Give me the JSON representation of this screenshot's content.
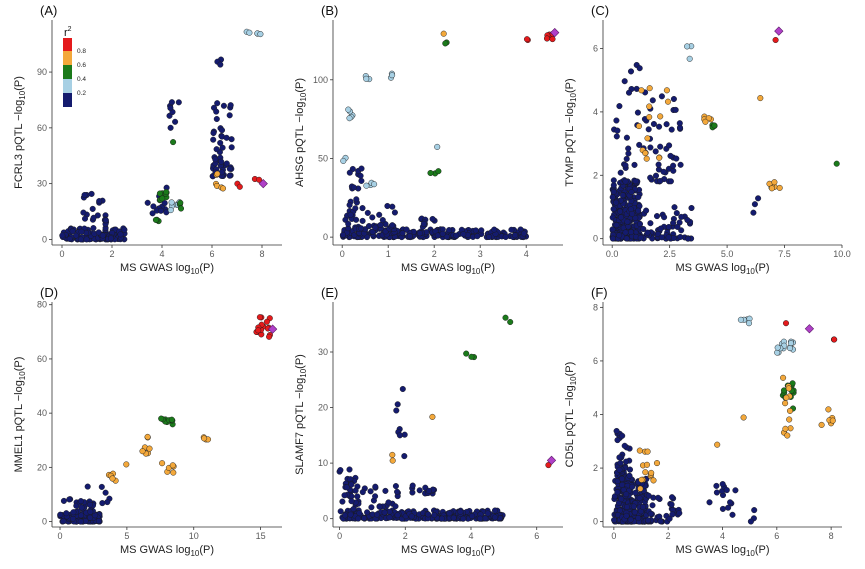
{
  "figure": {
    "legend": {
      "title": "r",
      "title_sup": "2",
      "labels": [
        "0.8",
        "0.6",
        "0.4",
        "0.2"
      ],
      "colors": [
        "#e41a1c",
        "#f3a83b",
        "#1b7a1b",
        "#a7d0e4",
        "#141b6e"
      ]
    },
    "lead_color": "#b040c8",
    "edge_color": "#1a1a1a"
  },
  "chart_data": [
    {
      "type": "scatter",
      "panel": "(A)",
      "ylabel_prefix": "FCRL3 pQTL ",
      "ylabel_suffix": "−log",
      "ylabel_sub": "10",
      "ylabel_end": "(P)",
      "xlabel_prefix": "MS GWAS ",
      "xlabel_suffix": "log",
      "xlabel_sub": "10",
      "xlabel_end": "(P)",
      "xlim": [
        -0.4,
        8.8
      ],
      "ylim": [
        -3,
        118
      ],
      "xticks": [
        0,
        2,
        4,
        6,
        8
      ],
      "xticklabels": [
        "0",
        "2",
        "4",
        "6",
        "8"
      ],
      "yticks": [
        0,
        30,
        60,
        90
      ],
      "yticklabels": [
        "0",
        "30",
        "60",
        "90"
      ],
      "clusters": [
        {
          "x": [
            0,
            2.5
          ],
          "y": [
            0,
            6
          ],
          "n": 110,
          "c": 0
        },
        {
          "x": [
            0.8,
            1.8
          ],
          "y": [
            6,
            26
          ],
          "n": 22,
          "c": 0
        },
        {
          "x": [
            3.4,
            4.2
          ],
          "y": [
            14,
            28
          ],
          "n": 12,
          "c": 0
        },
        {
          "x": [
            4.3,
            4.7
          ],
          "y": [
            60,
            74
          ],
          "n": 8,
          "c": 0
        },
        {
          "x": [
            6.0,
            6.8
          ],
          "y": [
            34,
            75
          ],
          "n": 50,
          "c": 0
        },
        {
          "x": [
            6.2,
            6.4
          ],
          "y": [
            86,
            98
          ],
          "n": 3,
          "c": 0
        },
        {
          "x": [
            3.9,
            4.4
          ],
          "y": [
            20,
            26
          ],
          "n": 10,
          "c": 2
        },
        {
          "x": [
            3.7,
            3.9
          ],
          "y": [
            9,
            12
          ],
          "n": 3,
          "c": 2
        },
        {
          "x": [
            4.7,
            4.9
          ],
          "y": [
            16,
            20
          ],
          "n": 3,
          "c": 2
        },
        {
          "x": [
            4.4,
            4.5
          ],
          "y": [
            52,
            54
          ],
          "n": 1,
          "c": 2
        },
        {
          "x": [
            4.2,
            4.7
          ],
          "y": [
            15,
            20
          ],
          "n": 6,
          "c": 1
        },
        {
          "x": [
            6.1,
            6.5
          ],
          "y": [
            26,
            40
          ],
          "n": 6,
          "c": 3
        },
        {
          "x": [
            7.0,
            7.2
          ],
          "y": [
            28,
            30
          ],
          "n": 2,
          "c": 4
        },
        {
          "x": [
            7.7,
            7.9
          ],
          "y": [
            30,
            33
          ],
          "n": 2,
          "c": 4
        },
        {
          "x": [
            7.3,
            8.1
          ],
          "y": [
            110,
            112
          ],
          "n": 5,
          "c": 1
        }
      ],
      "lead": {
        "x": 8.05,
        "y": 30
      }
    },
    {
      "type": "scatter",
      "panel": "(B)",
      "ylabel_prefix": "AHSG pQTL ",
      "ylabel_suffix": "−log",
      "ylabel_sub": "10",
      "ylabel_end": "(P)",
      "xlabel_prefix": "MS GWAS ",
      "xlabel_suffix": "log",
      "xlabel_sub": "10",
      "xlabel_end": "(P)",
      "xlim": [
        -0.2,
        4.8
      ],
      "ylim": [
        -5,
        138
      ],
      "xticks": [
        0,
        1,
        2,
        3,
        4
      ],
      "xticklabels": [
        "0",
        "1",
        "2",
        "3",
        "4"
      ],
      "yticks": [
        0,
        50,
        100
      ],
      "yticklabels": [
        "0",
        "50",
        "100"
      ],
      "clusters": [
        {
          "x": [
            0,
            4.0
          ],
          "y": [
            0,
            5
          ],
          "n": 220,
          "c": 0
        },
        {
          "x": [
            0,
            1.2
          ],
          "y": [
            5,
            20
          ],
          "n": 40,
          "c": 0
        },
        {
          "x": [
            0,
            0.5
          ],
          "y": [
            20,
            45
          ],
          "n": 15,
          "c": 0
        },
        {
          "x": [
            1.6,
            2.2
          ],
          "y": [
            5,
            12
          ],
          "n": 10,
          "c": 0
        },
        {
          "x": [
            0.1,
            0.4
          ],
          "y": [
            75,
            82
          ],
          "n": 5,
          "c": 1
        },
        {
          "x": [
            0.4,
            0.6
          ],
          "y": [
            100,
            110
          ],
          "n": 3,
          "c": 1
        },
        {
          "x": [
            1.0,
            1.1
          ],
          "y": [
            98,
            106
          ],
          "n": 3,
          "c": 1
        },
        {
          "x": [
            0.5,
            0.7
          ],
          "y": [
            32,
            35
          ],
          "n": 4,
          "c": 1
        },
        {
          "x": [
            0,
            0.1
          ],
          "y": [
            48,
            52
          ],
          "n": 2,
          "c": 1
        },
        {
          "x": [
            2.0,
            2.1
          ],
          "y": [
            55,
            58
          ],
          "n": 1,
          "c": 1
        },
        {
          "x": [
            1.9,
            2.1
          ],
          "y": [
            40,
            42
          ],
          "n": 3,
          "c": 2
        },
        {
          "x": [
            2.2,
            2.3
          ],
          "y": [
            121,
            124
          ],
          "n": 2,
          "c": 2
        },
        {
          "x": [
            2.2,
            2.3
          ],
          "y": [
            128,
            130
          ],
          "n": 1,
          "c": 3
        },
        {
          "x": [
            4.0,
            4.1
          ],
          "y": [
            123,
            126
          ],
          "n": 2,
          "c": 4
        },
        {
          "x": [
            4.45,
            4.6
          ],
          "y": [
            125,
            131
          ],
          "n": 6,
          "c": 4
        }
      ],
      "lead": {
        "x": 4.62,
        "y": 130
      }
    },
    {
      "type": "scatter",
      "panel": "(C)",
      "ylabel_prefix": "TYMP pQTL ",
      "ylabel_suffix": "−log",
      "ylabel_sub": "10",
      "ylabel_end": "(P)",
      "xlabel_prefix": "MS GWAS ",
      "xlabel_suffix": "log",
      "xlabel_sub": "10",
      "xlabel_end": "(P)",
      "xlim": [
        -0.4,
        10.0
      ],
      "ylim": [
        -0.2,
        6.9
      ],
      "xticks": [
        0,
        2.5,
        5,
        7.5,
        10
      ],
      "xticklabels": [
        "0.0",
        "2.5",
        "5.0",
        "7.5",
        "10.0"
      ],
      "yticks": [
        0,
        2,
        4,
        6
      ],
      "yticklabels": [
        "0",
        "2",
        "4",
        "6"
      ],
      "clusters": [
        {
          "x": [
            0,
            1.2
          ],
          "y": [
            0,
            1.8
          ],
          "n": 300,
          "c": 0
        },
        {
          "x": [
            1.2,
            3.5
          ],
          "y": [
            0,
            1.0
          ],
          "n": 60,
          "c": 0
        },
        {
          "x": [
            0,
            3.0
          ],
          "y": [
            1.8,
            4.5
          ],
          "n": 70,
          "c": 0
        },
        {
          "x": [
            0.3,
            1.5
          ],
          "y": [
            4.5,
            5.5
          ],
          "n": 8,
          "c": 0
        },
        {
          "x": [
            5.6,
            6.4
          ],
          "y": [
            0.8,
            1.5
          ],
          "n": 3,
          "c": 0
        },
        {
          "x": [
            1.0,
            2.5
          ],
          "y": [
            2.5,
            5.1
          ],
          "n": 14,
          "c": 3
        },
        {
          "x": [
            6.8,
            7.3
          ],
          "y": [
            1.5,
            1.8
          ],
          "n": 6,
          "c": 3
        },
        {
          "x": [
            6.4,
            6.6
          ],
          "y": [
            4.4,
            4.7
          ],
          "n": 1,
          "c": 3
        },
        {
          "x": [
            4.0,
            4.4
          ],
          "y": [
            3.6,
            3.9
          ],
          "n": 5,
          "c": 3
        },
        {
          "x": [
            4.1,
            4.5
          ],
          "y": [
            3.5,
            3.8
          ],
          "n": 4,
          "c": 2
        },
        {
          "x": [
            6.9,
            7.1
          ],
          "y": [
            1.6,
            1.7
          ],
          "n": 3,
          "c": 2
        },
        {
          "x": [
            9.6,
            9.8
          ],
          "y": [
            2.3,
            2.5
          ],
          "n": 1,
          "c": 2
        },
        {
          "x": [
            3.2,
            3.5
          ],
          "y": [
            5.6,
            6.2
          ],
          "n": 3,
          "c": 1
        },
        {
          "x": [
            7.0,
            7.2
          ],
          "y": [
            6.2,
            6.4
          ],
          "n": 1,
          "c": 4
        }
      ],
      "lead": {
        "x": 7.25,
        "y": 6.55
      }
    },
    {
      "type": "scatter",
      "panel": "(D)",
      "ylabel_prefix": "MMEL1 pQTL ",
      "ylabel_suffix": "−log",
      "ylabel_sub": "10",
      "ylabel_end": "(P)",
      "xlabel_prefix": "MS GWAS ",
      "xlabel_suffix": "log",
      "xlabel_sub": "10",
      "xlabel_end": "(P)",
      "xlim": [
        -0.6,
        16.6
      ],
      "ylim": [
        -2,
        81
      ],
      "xticks": [
        0,
        5,
        10,
        15
      ],
      "xticklabels": [
        "0",
        "5",
        "10",
        "15"
      ],
      "yticks": [
        0,
        20,
        40,
        60,
        80
      ],
      "yticklabels": [
        "0",
        "20",
        "40",
        "60",
        "80"
      ],
      "clusters": [
        {
          "x": [
            0,
            3.0
          ],
          "y": [
            0,
            3
          ],
          "n": 80,
          "c": 0
        },
        {
          "x": [
            0.2,
            2.5
          ],
          "y": [
            3,
            9
          ],
          "n": 25,
          "c": 0
        },
        {
          "x": [
            1.5,
            4.0
          ],
          "y": [
            5,
            14
          ],
          "n": 8,
          "c": 0
        },
        {
          "x": [
            3.3,
            4.2
          ],
          "y": [
            15,
            18
          ],
          "n": 5,
          "c": 3
        },
        {
          "x": [
            6.0,
            7.3
          ],
          "y": [
            25,
            32
          ],
          "n": 8,
          "c": 3
        },
        {
          "x": [
            7.5,
            8.5
          ],
          "y": [
            18,
            22
          ],
          "n": 6,
          "c": 3
        },
        {
          "x": [
            10.7,
            11.6
          ],
          "y": [
            30,
            32
          ],
          "n": 4,
          "c": 3
        },
        {
          "x": [
            4.5,
            5.0
          ],
          "y": [
            20,
            22
          ],
          "n": 1,
          "c": 3
        },
        {
          "x": [
            7.5,
            8.6
          ],
          "y": [
            35,
            38
          ],
          "n": 10,
          "c": 2
        },
        {
          "x": [
            14.4,
            15.8
          ],
          "y": [
            68,
            76
          ],
          "n": 16,
          "c": 4
        }
      ],
      "lead": {
        "x": 15.9,
        "y": 71
      }
    },
    {
      "type": "scatter",
      "panel": "(E)",
      "ylabel_prefix": "SLAMF7 pQTL ",
      "ylabel_suffix": "−log",
      "ylabel_sub": "10",
      "ylabel_end": "(P)",
      "xlabel_prefix": "MS GWAS ",
      "xlabel_suffix": "log",
      "xlabel_sub": "10",
      "xlabel_end": "(P)",
      "xlim": [
        -0.2,
        6.8
      ],
      "ylim": [
        -1.5,
        39
      ],
      "xticks": [
        0,
        2,
        4,
        6
      ],
      "xticklabels": [
        "0",
        "2",
        "4",
        "6"
      ],
      "yticks": [
        0,
        10,
        20,
        30
      ],
      "yticklabels": [
        "0",
        "10",
        "20",
        "30"
      ],
      "clusters": [
        {
          "x": [
            0,
            5.0
          ],
          "y": [
            0,
            1.5
          ],
          "n": 260,
          "c": 0
        },
        {
          "x": [
            0,
            0.6
          ],
          "y": [
            1.5,
            9
          ],
          "n": 30,
          "c": 0
        },
        {
          "x": [
            0.6,
            1.8
          ],
          "y": [
            1.5,
            6
          ],
          "n": 20,
          "c": 0
        },
        {
          "x": [
            2.2,
            3.0
          ],
          "y": [
            4.5,
            6
          ],
          "n": 14,
          "c": 0
        },
        {
          "x": [
            1.6,
            2.0
          ],
          "y": [
            10,
            24
          ],
          "n": 8,
          "c": 0
        },
        {
          "x": [
            1.6,
            1.8
          ],
          "y": [
            10,
            12
          ],
          "n": 2,
          "c": 3
        },
        {
          "x": [
            2.8,
            3.0
          ],
          "y": [
            18,
            19
          ],
          "n": 1,
          "c": 3
        },
        {
          "x": [
            3.6,
            4.2
          ],
          "y": [
            29,
            30
          ],
          "n": 3,
          "c": 2
        },
        {
          "x": [
            4.9,
            5.4
          ],
          "y": [
            35,
            36.5
          ],
          "n": 2,
          "c": 2
        },
        {
          "x": [
            6.3,
            6.4
          ],
          "y": [
            9.5,
            9.7
          ],
          "n": 1,
          "c": 4
        }
      ],
      "lead": {
        "x": 6.45,
        "y": 10.5
      }
    },
    {
      "type": "scatter",
      "panel": "(F)",
      "ylabel_prefix": "CD5L pQTL ",
      "ylabel_suffix": "−log",
      "ylabel_sub": "10",
      "ylabel_end": "(P)",
      "xlabel_prefix": "MS GWAS ",
      "xlabel_suffix": "log",
      "xlabel_sub": "10",
      "xlabel_end": "(P)",
      "xlim": [
        -0.4,
        8.4
      ],
      "ylim": [
        -0.2,
        8.2
      ],
      "xticks": [
        0,
        2,
        4,
        6,
        8
      ],
      "xticklabels": [
        "0",
        "2",
        "4",
        "6",
        "8"
      ],
      "yticks": [
        0,
        2,
        4,
        6,
        8
      ],
      "yticklabels": [
        "0",
        "2",
        "4",
        "6",
        "8"
      ],
      "clusters": [
        {
          "x": [
            0,
            1.2
          ],
          "y": [
            0,
            1.6
          ],
          "n": 280,
          "c": 0
        },
        {
          "x": [
            0.1,
            0.6
          ],
          "y": [
            1.6,
            3.4
          ],
          "n": 40,
          "c": 0
        },
        {
          "x": [
            1.2,
            2.5
          ],
          "y": [
            0,
            1.0
          ],
          "n": 40,
          "c": 0
        },
        {
          "x": [
            3.5,
            4.5
          ],
          "y": [
            0.2,
            1.8
          ],
          "n": 14,
          "c": 0
        },
        {
          "x": [
            4.8,
            5.2
          ],
          "y": [
            0,
            0.6
          ],
          "n": 3,
          "c": 0
        },
        {
          "x": [
            0.8,
            1.6
          ],
          "y": [
            1.0,
            2.8
          ],
          "n": 14,
          "c": 3
        },
        {
          "x": [
            6.2,
            6.6
          ],
          "y": [
            2.8,
            5.6
          ],
          "n": 12,
          "c": 3
        },
        {
          "x": [
            7.6,
            8.1
          ],
          "y": [
            3.4,
            4.2
          ],
          "n": 6,
          "c": 3
        },
        {
          "x": [
            4.7,
            4.8
          ],
          "y": [
            3.8,
            3.9
          ],
          "n": 1,
          "c": 3
        },
        {
          "x": [
            3.7,
            3.9
          ],
          "y": [
            2.8,
            3.0
          ],
          "n": 1,
          "c": 3
        },
        {
          "x": [
            6.2,
            6.8
          ],
          "y": [
            4.2,
            5.2
          ],
          "n": 14,
          "c": 2
        },
        {
          "x": [
            4.6,
            5.0
          ],
          "y": [
            7.4,
            7.7
          ],
          "n": 6,
          "c": 1
        },
        {
          "x": [
            6.0,
            6.6
          ],
          "y": [
            6.3,
            6.8
          ],
          "n": 14,
          "c": 1
        },
        {
          "x": [
            8.0,
            8.2
          ],
          "y": [
            6.8,
            6.8
          ],
          "n": 2,
          "c": 4
        },
        {
          "x": [
            6.3,
            6.5
          ],
          "y": [
            7.4,
            7.5
          ],
          "n": 1,
          "c": 4
        }
      ],
      "lead": {
        "x": 7.2,
        "y": 7.2
      }
    }
  ]
}
